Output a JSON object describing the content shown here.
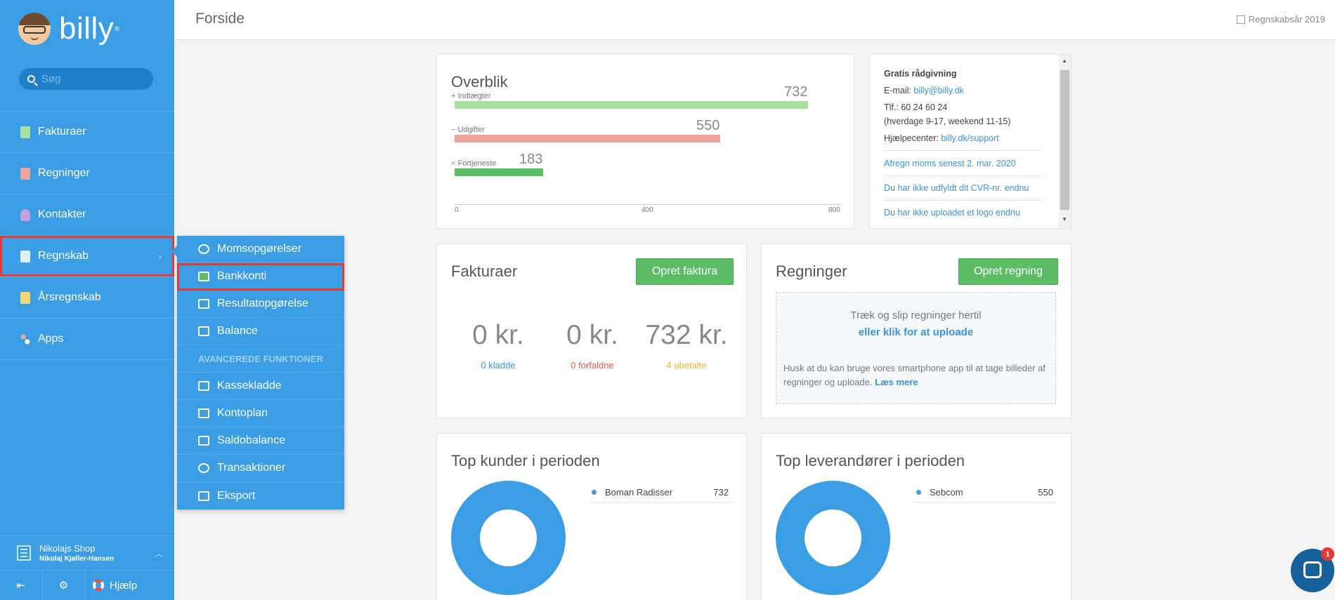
{
  "sidebar": {
    "logo_text": "billy",
    "logo_mark": "®",
    "search_placeholder": "Søg",
    "items": [
      {
        "label": "Fakturaer",
        "icon": "invoice-icon"
      },
      {
        "label": "Regninger",
        "icon": "bill-icon"
      },
      {
        "label": "Kontakter",
        "icon": "contact-icon"
      },
      {
        "label": "Regnskab",
        "icon": "accounting-icon"
      },
      {
        "label": "Årsregnskab",
        "icon": "annual-report-icon"
      },
      {
        "label": "Apps",
        "icon": "apps-icon"
      }
    ],
    "org_name": "Nikolajs Shop",
    "org_user": "Nikolaj Kjøller-Hansen",
    "help_label": "Hjælp"
  },
  "submenu": {
    "items": [
      {
        "label": "Momsopgørelser",
        "icon": "pie-icon"
      },
      {
        "label": "Bankkonti",
        "icon": "bank-icon"
      },
      {
        "label": "Resultatopgørelse",
        "icon": "result-icon"
      },
      {
        "label": "Balance",
        "icon": "balance-icon"
      }
    ],
    "advanced_heading": "AVANCEREDE FUNKTIONER",
    "advanced_items": [
      {
        "label": "Kassekladde",
        "icon": "journal-icon"
      },
      {
        "label": "Kontoplan",
        "icon": "chart-of-accounts-icon"
      },
      {
        "label": "Saldobalance",
        "icon": "trial-balance-icon"
      },
      {
        "label": "Transaktioner",
        "icon": "transactions-icon"
      },
      {
        "label": "Eksport",
        "icon": "export-icon"
      }
    ]
  },
  "header": {
    "title": "Forside",
    "fiscal_year": "Regnskabsår 2019"
  },
  "overview": {
    "title": "Overblik",
    "chart_data": {
      "type": "bar",
      "categories": [
        "Indtægter",
        "Udgifter",
        "Fortjeneste"
      ],
      "prefixes": [
        "+",
        "−",
        "="
      ],
      "values": [
        732,
        550,
        183
      ],
      "xlim": [
        0,
        800
      ],
      "ticks": [
        "0",
        "400",
        "800"
      ],
      "colors": [
        "#a8e0a0",
        "#f0a39a",
        "#5cbd66"
      ]
    }
  },
  "info": {
    "heading": "Gratis rådgivning",
    "email_label": "E-mail:",
    "email": "billy@billy.dk",
    "phone": "Tlf.: 60 24 60 24",
    "hours": "(hverdage 9-17, weekend 11-15)",
    "help_label": "Hjælpecenter:",
    "help_link": "billy.dk/support",
    "links": [
      "Afregn moms senest 2. mar. 2020",
      "Du har ikke udfyldt dit CVR-nr. endnu",
      "Du har ikke uploadet et logo endnu"
    ]
  },
  "invoices": {
    "title": "Fakturaer",
    "button": "Opret faktura",
    "stats": [
      {
        "amount": "0 kr.",
        "label": "0 kladde",
        "color": "#3b93d6"
      },
      {
        "amount": "0 kr.",
        "label": "0 forfaldne",
        "color": "#e05a4f"
      },
      {
        "amount": "732 kr.",
        "label": "4 ubetalte",
        "color": "#f0b429"
      }
    ]
  },
  "bills": {
    "title": "Regninger",
    "button": "Opret regning",
    "drop_text": "Træk og slip regninger hertil",
    "drop_link": "eller klik for at uploade",
    "hint": "Husk at du kan bruge vores smartphone app til at tage billeder af regninger og uploade.",
    "hint_link": "Læs mere"
  },
  "top_customers": {
    "title": "Top kunder i perioden",
    "rows": [
      {
        "name": "Boman Radisser",
        "value": "732"
      }
    ]
  },
  "top_suppliers": {
    "title": "Top leverandører i perioden",
    "rows": [
      {
        "name": "Sebcom",
        "value": "550"
      }
    ]
  },
  "chat": {
    "badge": "1"
  }
}
